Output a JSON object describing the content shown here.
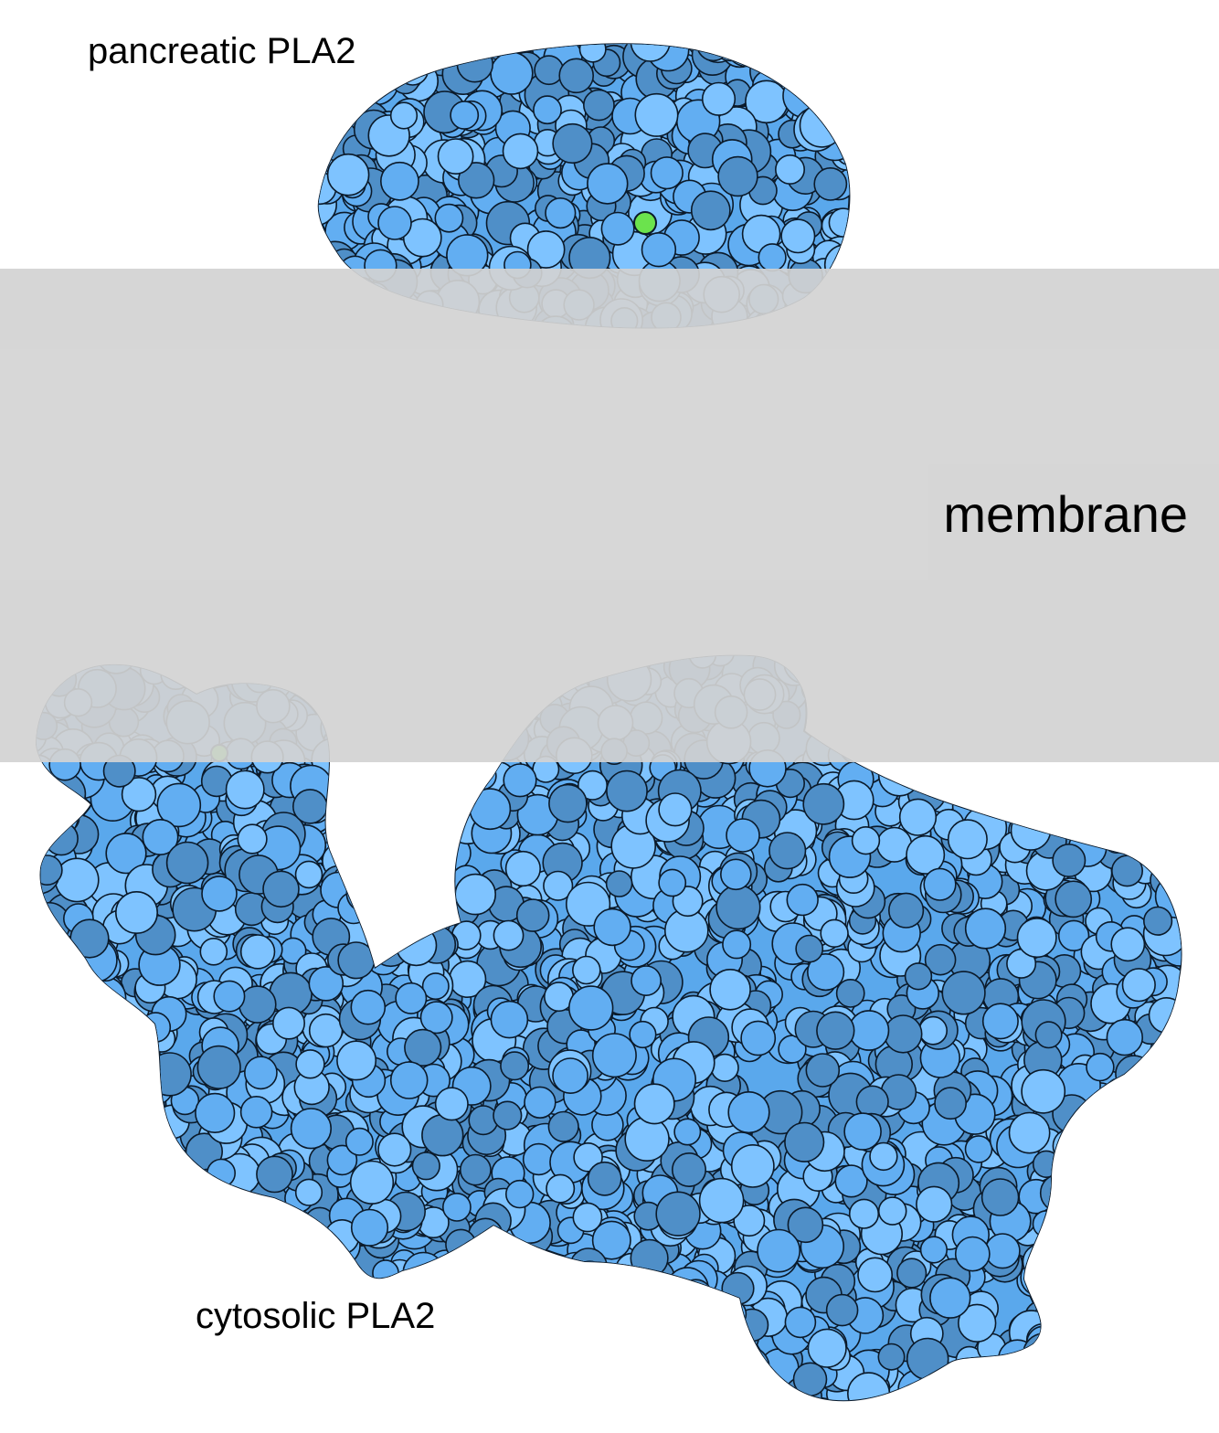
{
  "labels": {
    "top_protein": "pancreatic PLA2",
    "membrane": "membrane",
    "bottom_protein": "cytosolic PLA2"
  },
  "colors": {
    "background": "#ffffff",
    "membrane": "#d3d3d3",
    "atom_light": "#7ec3ff",
    "atom_mid": "#62aef2",
    "atom_dark": "#4f8fc8",
    "outline": "#0b1a2a",
    "ligand": "#6be34d"
  },
  "icons": {
    "top_protein": "protein-surface-icon",
    "bottom_protein": "protein-surface-icon",
    "ligand": "calcium-ion-icon"
  }
}
